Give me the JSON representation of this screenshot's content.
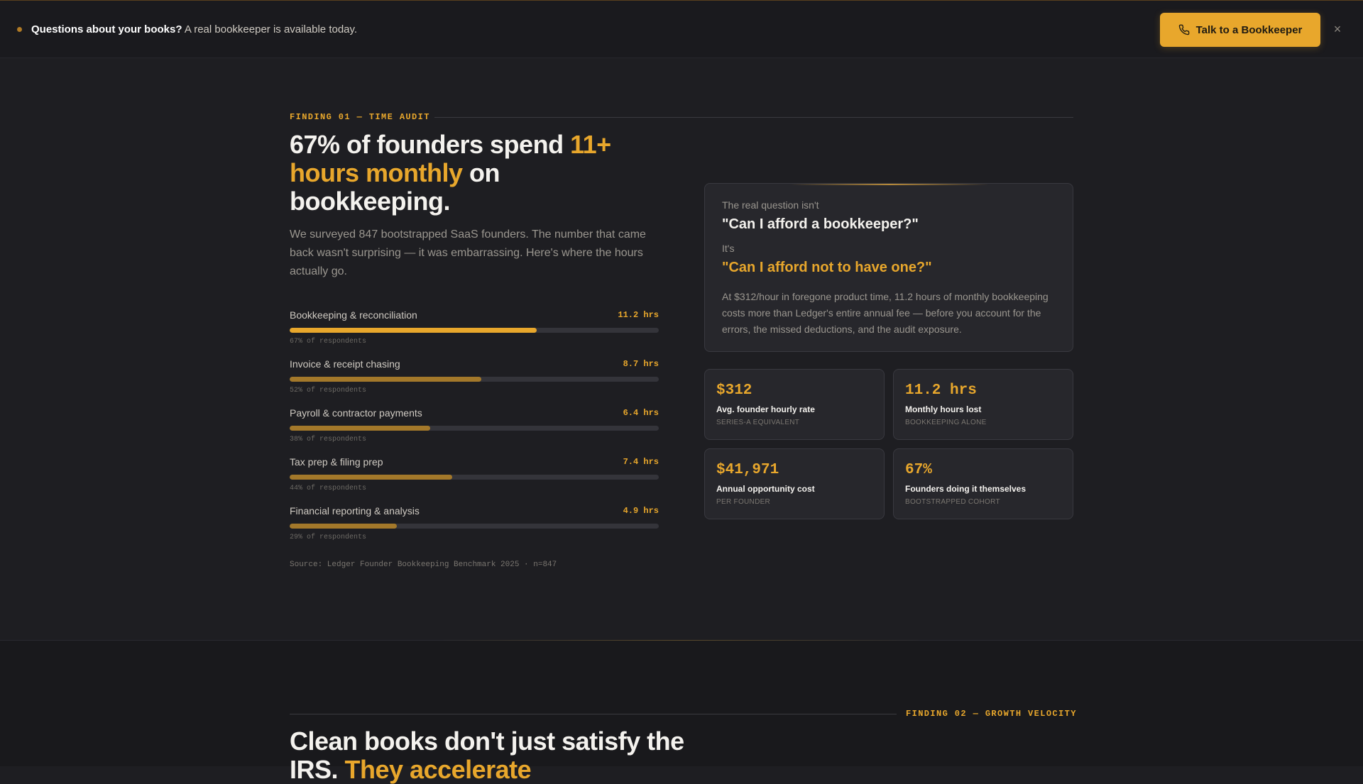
{
  "banner": {
    "strong": "Questions about your books?",
    "text": "A real bookkeeper is available today.",
    "cta_label": "Talk to a Bookkeeper",
    "close_label": "×"
  },
  "finding1": {
    "eyebrow": "FINDING 01 — TIME AUDIT",
    "headline_pre": "67% of founders spend ",
    "headline_highlight": "11+ hours monthly",
    "headline_post": " on bookkeeping.",
    "lede": "We surveyed 847 bootstrapped SaaS founders. The number that came back wasn't surprising — it was embarrassing. Here's where the hours actually go.",
    "bars": [
      {
        "label": "Bookkeeping & reconciliation",
        "value": "11.2 hrs",
        "sub": "67% of respondents",
        "percent": 67
      },
      {
        "label": "Invoice & receipt chasing",
        "value": "8.7 hrs",
        "sub": "52% of respondents",
        "percent": 52
      },
      {
        "label": "Payroll & contractor payments",
        "value": "6.4 hrs",
        "sub": "38% of respondents",
        "percent": 38
      },
      {
        "label": "Tax prep & filing prep",
        "value": "7.4 hrs",
        "sub": "44% of respondents",
        "percent": 44
      },
      {
        "label": "Financial reporting & analysis",
        "value": "4.9 hrs",
        "sub": "29% of respondents",
        "percent": 29
      }
    ],
    "source": "Source: Ledger Founder Bookkeeping Benchmark 2025 · n=847",
    "quote": {
      "pre": "The real question isn't",
      "main": "\"Can I afford a bookkeeper?\"",
      "its": "It's",
      "alt": "\"Can I afford not to have one?\"",
      "body": "At $312/hour in foregone product time, 11.2 hours of monthly bookkeeping costs more than Ledger's entire annual fee — before you account for the errors, the missed deductions, and the audit exposure."
    },
    "stats": [
      {
        "value": "$312",
        "label": "Avg. founder hourly rate",
        "sub": "SERIES-A EQUIVALENT"
      },
      {
        "value": "11.2 hrs",
        "label": "Monthly hours lost",
        "sub": "BOOKKEEPING ALONE"
      },
      {
        "value": "$41,971",
        "label": "Annual opportunity cost",
        "sub": "PER FOUNDER"
      },
      {
        "value": "67%",
        "label": "Founders doing it themselves",
        "sub": "BOOTSTRAPPED COHORT"
      }
    ]
  },
  "finding2": {
    "eyebrow": "FINDING 02 — GROWTH VELOCITY",
    "headline_pre": "Clean books don't just satisfy the IRS. ",
    "headline_highlight": "They accelerate"
  },
  "colors": {
    "accent": "#e8a72c",
    "bar_muted": "#a3782a",
    "background": "#1e1e22"
  }
}
